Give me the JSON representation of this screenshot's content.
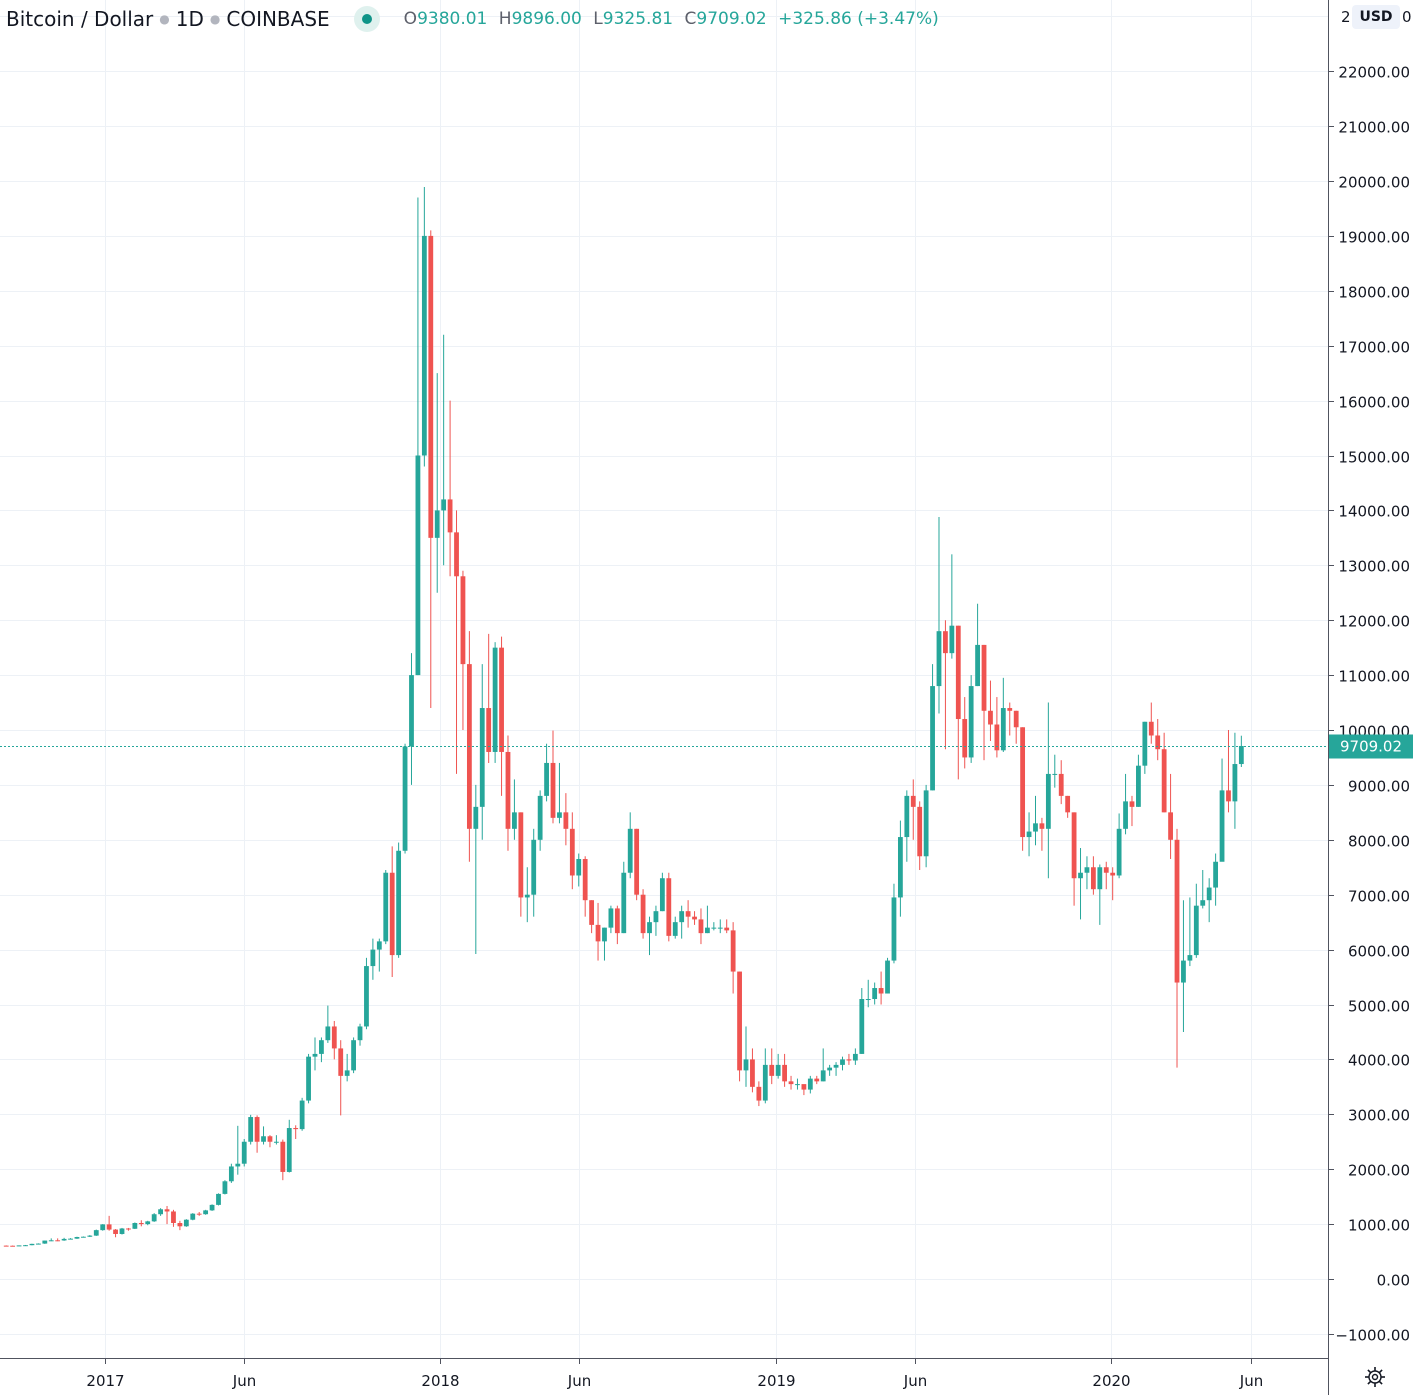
{
  "header": {
    "symbol": "Bitcoin / Dollar",
    "interval": "1D",
    "exchange": "COINBASE",
    "open_label": "O",
    "open": "9380.01",
    "high_label": "H",
    "high": "9896.00",
    "low_label": "L",
    "low": "9325.81",
    "close_label": "C",
    "close": "9709.02",
    "change": "+325.86 (+3.47%)"
  },
  "currency": "USD",
  "colors": {
    "up": "#26a69a",
    "down": "#ef5350",
    "grid": "#edf1f6",
    "last_price": "#26a69a"
  },
  "icons": {
    "settings": "gear-icon",
    "market_status": "status-dot-icon"
  },
  "chart_data": {
    "type": "candlestick",
    "title": "Bitcoin / Dollar · 1D · COINBASE",
    "ylim": [
      -1000,
      23000
    ],
    "y_ticks": [
      "22000.00",
      "21000.00",
      "20000.00",
      "19000.00",
      "18000.00",
      "17000.00",
      "16000.00",
      "15000.00",
      "14000.00",
      "13000.00",
      "12000.00",
      "11000.00",
      "10000.00",
      "9000.00",
      "8000.00",
      "7000.00",
      "6000.00",
      "5000.00",
      "4000.00",
      "3000.00",
      "2000.00",
      "1000.00",
      "0.00",
      "−1000.00"
    ],
    "x_ticks": [
      {
        "label": "2017",
        "date": "2017-01-01"
      },
      {
        "label": "Jun",
        "date": "2017-06-01"
      },
      {
        "label": "2018",
        "date": "2018-01-01"
      },
      {
        "label": "Jun",
        "date": "2018-06-01"
      },
      {
        "label": "2019",
        "date": "2019-01-01"
      },
      {
        "label": "Jun",
        "date": "2019-06-01"
      },
      {
        "label": "2020",
        "date": "2020-01-01"
      },
      {
        "label": "Jun",
        "date": "2020-06-01"
      }
    ],
    "last_price": "9709.02",
    "grid": true,
    "candle_start": "2016-09-12",
    "candle_interval_days": 7,
    "ohlc": [
      [
        608,
        612,
        598,
        606
      ],
      [
        606,
        610,
        596,
        603
      ],
      [
        603,
        612,
        600,
        612
      ],
      [
        612,
        620,
        608,
        616
      ],
      [
        616,
        642,
        614,
        640
      ],
      [
        640,
        650,
        628,
        645
      ],
      [
        645,
        700,
        640,
        700
      ],
      [
        700,
        740,
        690,
        705
      ],
      [
        705,
        740,
        690,
        702
      ],
      [
        702,
        750,
        695,
        730
      ],
      [
        730,
        745,
        725,
        735
      ],
      [
        735,
        770,
        730,
        765
      ],
      [
        765,
        775,
        755,
        770
      ],
      [
        770,
        800,
        765,
        790
      ],
      [
        790,
        900,
        785,
        890
      ],
      [
        890,
        1000,
        880,
        995
      ],
      [
        995,
        1150,
        880,
        900
      ],
      [
        900,
        910,
        760,
        820
      ],
      [
        820,
        930,
        810,
        920
      ],
      [
        920,
        930,
        880,
        915
      ],
      [
        915,
        1030,
        910,
        1020
      ],
      [
        1020,
        1070,
        960,
        1000
      ],
      [
        1000,
        1060,
        980,
        1050
      ],
      [
        1050,
        1200,
        1040,
        1180
      ],
      [
        1180,
        1290,
        1150,
        1270
      ],
      [
        1270,
        1330,
        1000,
        1230
      ],
      [
        1230,
        1260,
        950,
        1020
      ],
      [
        1020,
        1060,
        890,
        960
      ],
      [
        960,
        1090,
        950,
        1080
      ],
      [
        1080,
        1200,
        1070,
        1190
      ],
      [
        1190,
        1220,
        1150,
        1180
      ],
      [
        1180,
        1260,
        1170,
        1250
      ],
      [
        1250,
        1360,
        1240,
        1350
      ],
      [
        1350,
        1560,
        1340,
        1550
      ],
      [
        1550,
        1800,
        1540,
        1780
      ],
      [
        1780,
        2100,
        1750,
        2050
      ],
      [
        2050,
        2790,
        1900,
        2100
      ],
      [
        2100,
        2550,
        2050,
        2500
      ],
      [
        2500,
        2990,
        2450,
        2950
      ],
      [
        2950,
        2980,
        2300,
        2500
      ],
      [
        2500,
        2780,
        2450,
        2600
      ],
      [
        2600,
        2620,
        2400,
        2500
      ],
      [
        2500,
        2620,
        2450,
        2500
      ],
      [
        2500,
        2540,
        1800,
        1950
      ],
      [
        1950,
        2900,
        1940,
        2750
      ],
      [
        2750,
        2800,
        2550,
        2730
      ],
      [
        2730,
        3300,
        2700,
        3250
      ],
      [
        3250,
        4100,
        3200,
        4050
      ],
      [
        4050,
        4400,
        3800,
        4100
      ],
      [
        4100,
        4400,
        3950,
        4350
      ],
      [
        4350,
        4980,
        4300,
        4600
      ],
      [
        4600,
        4700,
        4000,
        4200
      ],
      [
        4200,
        4350,
        2980,
        3700
      ],
      [
        3700,
        4100,
        3600,
        3800
      ],
      [
        3800,
        4400,
        3750,
        4350
      ],
      [
        4350,
        4650,
        4250,
        4600
      ],
      [
        4600,
        5850,
        4550,
        5700
      ],
      [
        5700,
        6200,
        5450,
        6000
      ],
      [
        6000,
        6200,
        5600,
        6150
      ],
      [
        6150,
        7450,
        6100,
        7400
      ],
      [
        7400,
        7880,
        5500,
        5900
      ],
      [
        5900,
        7950,
        5850,
        7800
      ],
      [
        7800,
        9750,
        7750,
        9700
      ],
      [
        9700,
        11400,
        9000,
        11000
      ],
      [
        11000,
        19700,
        11000,
        15000
      ],
      [
        15000,
        19891,
        14800,
        19000
      ],
      [
        19000,
        19100,
        10400,
        13500
      ],
      [
        13500,
        16500,
        12500,
        14000
      ],
      [
        14000,
        17200,
        13000,
        14200
      ],
      [
        14200,
        16000,
        12800,
        13600
      ],
      [
        13600,
        14000,
        9200,
        12800
      ],
      [
        12800,
        12900,
        10000,
        11200
      ],
      [
        11200,
        11800,
        7600,
        8200
      ],
      [
        8200,
        9000,
        5920,
        8600
      ],
      [
        8600,
        11200,
        8000,
        10400
      ],
      [
        10400,
        11750,
        9400,
        9600
      ],
      [
        9600,
        11600,
        9400,
        11500
      ],
      [
        11500,
        11700,
        8800,
        9600
      ],
      [
        9600,
        9900,
        7800,
        8200
      ],
      [
        8200,
        9100,
        8000,
        8500
      ],
      [
        8500,
        8500,
        6600,
        6950
      ],
      [
        6950,
        7500,
        6500,
        7000
      ],
      [
        7000,
        8200,
        6600,
        8000
      ],
      [
        8000,
        8900,
        7800,
        8800
      ],
      [
        8800,
        9750,
        8700,
        9400
      ],
      [
        9400,
        9990,
        8300,
        8400
      ],
      [
        8400,
        9400,
        8300,
        8500
      ],
      [
        8500,
        8850,
        7900,
        8200
      ],
      [
        8200,
        8500,
        7100,
        7350
      ],
      [
        7350,
        7750,
        7150,
        7650
      ],
      [
        7650,
        7700,
        6600,
        6900
      ],
      [
        6900,
        6900,
        6300,
        6450
      ],
      [
        6450,
        6850,
        5800,
        6150
      ],
      [
        6150,
        6400,
        5800,
        6400
      ],
      [
        6400,
        6800,
        6300,
        6750
      ],
      [
        6750,
        6800,
        6100,
        6300
      ],
      [
        6300,
        7600,
        6300,
        7400
      ],
      [
        7400,
        8500,
        7300,
        8200
      ],
      [
        8200,
        8200,
        6900,
        7000
      ],
      [
        7000,
        7100,
        6200,
        6300
      ],
      [
        6300,
        6600,
        5900,
        6500
      ],
      [
        6500,
        6800,
        6250,
        6700
      ],
      [
        6700,
        7400,
        6700,
        7300
      ],
      [
        7300,
        7400,
        6150,
        6250
      ],
      [
        6250,
        6600,
        6200,
        6500
      ],
      [
        6500,
        6800,
        6200,
        6700
      ],
      [
        6700,
        6900,
        6400,
        6600
      ],
      [
        6600,
        6700,
        6450,
        6550
      ],
      [
        6550,
        6750,
        6100,
        6300
      ],
      [
        6300,
        6800,
        6300,
        6400
      ],
      [
        6400,
        6500,
        6350,
        6400
      ],
      [
        6400,
        6550,
        6300,
        6400
      ],
      [
        6400,
        6550,
        6300,
        6350
      ],
      [
        6350,
        6500,
        5200,
        5600
      ],
      [
        5600,
        5600,
        3600,
        3800
      ],
      [
        3800,
        4600,
        3500,
        4000
      ],
      [
        4000,
        4200,
        3400,
        3500
      ],
      [
        3500,
        3600,
        3150,
        3250
      ],
      [
        3250,
        4200,
        3200,
        3900
      ],
      [
        3900,
        4200,
        3550,
        3700
      ],
      [
        3700,
        4100,
        3650,
        3900
      ],
      [
        3900,
        4100,
        3500,
        3600
      ],
      [
        3600,
        3700,
        3450,
        3550
      ],
      [
        3550,
        3650,
        3450,
        3550
      ],
      [
        3550,
        3500,
        3350,
        3450
      ],
      [
        3450,
        3700,
        3380,
        3650
      ],
      [
        3650,
        3700,
        3550,
        3600
      ],
      [
        3600,
        4200,
        3600,
        3800
      ],
      [
        3800,
        3900,
        3700,
        3850
      ],
      [
        3850,
        3950,
        3700,
        3900
      ],
      [
        3900,
        4050,
        3800,
        4000
      ],
      [
        4000,
        4100,
        3900,
        3980
      ],
      [
        3980,
        4200,
        3900,
        4100
      ],
      [
        4100,
        5300,
        4100,
        5100
      ],
      [
        5100,
        5450,
        4950,
        5100
      ],
      [
        5100,
        5400,
        5000,
        5300
      ],
      [
        5300,
        5600,
        5000,
        5200
      ],
      [
        5200,
        5850,
        5200,
        5800
      ],
      [
        5800,
        7200,
        5750,
        6950
      ],
      [
        6950,
        8350,
        6600,
        8050
      ],
      [
        8050,
        8900,
        7600,
        8800
      ],
      [
        8800,
        9100,
        8000,
        8600
      ],
      [
        8600,
        8700,
        7450,
        7700
      ],
      [
        7700,
        9000,
        7500,
        8900
      ],
      [
        8900,
        11200,
        8900,
        10800
      ],
      [
        10800,
        13880,
        10300,
        11800
      ],
      [
        11800,
        12000,
        9650,
        11400
      ],
      [
        11400,
        13200,
        11300,
        11900
      ],
      [
        11900,
        11900,
        9100,
        10200
      ],
      [
        10200,
        10600,
        9300,
        9500
      ],
      [
        9500,
        11000,
        9400,
        10800
      ],
      [
        10800,
        12300,
        10800,
        11550
      ],
      [
        11550,
        11550,
        9450,
        10350
      ],
      [
        10350,
        10900,
        9800,
        10100
      ],
      [
        10100,
        10600,
        9500,
        9630
      ],
      [
        9630,
        10950,
        9600,
        10400
      ],
      [
        10400,
        10500,
        9900,
        10350
      ],
      [
        10350,
        10350,
        9750,
        10050
      ],
      [
        10050,
        10050,
        7800,
        8050
      ],
      [
        8050,
        8500,
        7700,
        8150
      ],
      [
        8150,
        8800,
        7900,
        8300
      ],
      [
        8300,
        8400,
        7800,
        8200
      ],
      [
        8200,
        10500,
        7300,
        9200
      ],
      [
        9200,
        9550,
        8950,
        9200
      ],
      [
        9200,
        9450,
        8650,
        8800
      ],
      [
        8800,
        8800,
        8400,
        8500
      ],
      [
        8500,
        8500,
        6800,
        7300
      ],
      [
        7300,
        7850,
        6550,
        7400
      ],
      [
        7400,
        7700,
        7100,
        7500
      ],
      [
        7500,
        7700,
        7000,
        7100
      ],
      [
        7100,
        7550,
        6450,
        7500
      ],
      [
        7500,
        7600,
        7100,
        7400
      ],
      [
        7400,
        7500,
        6900,
        7350
      ],
      [
        7350,
        8480,
        7300,
        8200
      ],
      [
        8200,
        9200,
        8100,
        8700
      ],
      [
        8700,
        8800,
        8250,
        8600
      ],
      [
        8600,
        9550,
        8600,
        9350
      ],
      [
        9350,
        10150,
        9200,
        10150
      ],
      [
        10150,
        10500,
        9750,
        9900
      ],
      [
        9900,
        10200,
        9450,
        9650
      ],
      [
        9650,
        9950,
        8500,
        8500
      ],
      [
        8500,
        9200,
        7650,
        8000
      ],
      [
        8000,
        8200,
        3850,
        5400
      ],
      [
        5400,
        6900,
        4500,
        5800
      ],
      [
        5800,
        6950,
        5700,
        5900
      ],
      [
        5900,
        7200,
        5850,
        6800
      ],
      [
        6800,
        7450,
        6750,
        6900
      ],
      [
        6900,
        7300,
        6500,
        7130
      ],
      [
        7130,
        7750,
        6800,
        7600
      ],
      [
        7600,
        9480,
        7650,
        8900
      ],
      [
        8900,
        10000,
        8500,
        8700
      ],
      [
        8700,
        9950,
        8200,
        9380
      ],
      [
        9380.01,
        9896,
        9325.81,
        9709.02
      ]
    ]
  }
}
